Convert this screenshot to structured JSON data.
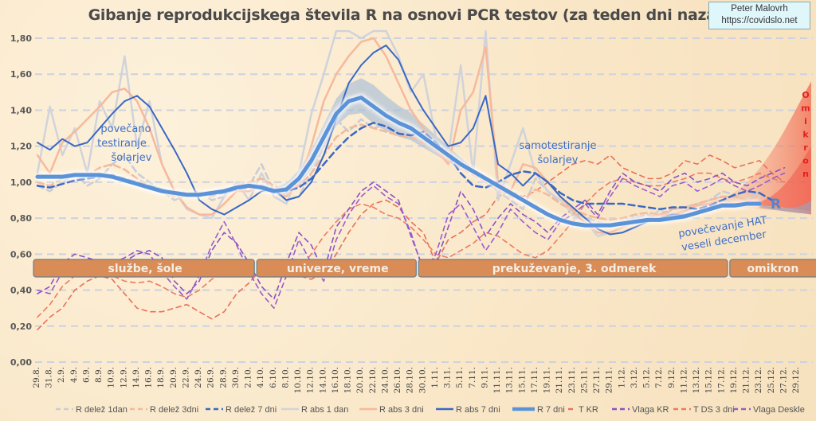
{
  "header": {
    "title": "Gibanje reprodukcijskega števila R na osnovi PCR testov (za teden dni nazaj)",
    "author_name": "Peter Malovrh",
    "author_url": "https://covidslo.net"
  },
  "chart_data": {
    "type": "line",
    "title": "Gibanje reprodukcijskega števila R na osnovi PCR testov (za teden dni nazaj)",
    "xlabel": "",
    "ylabel": "",
    "ylim": [
      0,
      1.8
    ],
    "yticks": [
      "0,00",
      "0,20",
      "0,40",
      "0,60",
      "0,80",
      "1,00",
      "1,20",
      "1,40",
      "1,60",
      "1,80"
    ],
    "grid": true,
    "legend_position": "bottom",
    "x_categories": [
      "29.8.",
      "31.8.",
      "2.9.",
      "4.9.",
      "6.9.",
      "8.9.",
      "10.9.",
      "12.9.",
      "14.9.",
      "16.9.",
      "18.9.",
      "20.9.",
      "22.9.",
      "24.9.",
      "26.9.",
      "28.9.",
      "30.9.",
      "2.10.",
      "4.10.",
      "6.10.",
      "8.10.",
      "10.10.",
      "12.10.",
      "14.10.",
      "16.10.",
      "18.10.",
      "20.10.",
      "22.10.",
      "24.10.",
      "26.10.",
      "28.10.",
      "30.10.",
      "1.11.",
      "3.11.",
      "5.11.",
      "7.11.",
      "9.11.",
      "11.11.",
      "13.11.",
      "15.11.",
      "17.11.",
      "19.11.",
      "21.11.",
      "23.11.",
      "25.11.",
      "27.11.",
      "29.11.",
      "1.12.",
      "3.12.",
      "5.12.",
      "7.12.",
      "9.12.",
      "11.12.",
      "13.12.",
      "15.12.",
      "17.12.",
      "19.12.",
      "21.12.",
      "23.12.",
      "25.12.",
      "27.12.",
      "29.12."
    ],
    "series": [
      {
        "name": "R delež 1dan",
        "style": "dashed",
        "color": "#c8ccd6",
        "width": 2.5,
        "values": [
          0.98,
          0.95,
          1.0,
          1.05,
          0.98,
          1.02,
          1.1,
          1.15,
          1.05,
          1.0,
          0.95,
          0.9,
          0.93,
          0.95,
          0.9,
          0.92,
          1.0,
          0.98,
          1.1,
          0.95,
          0.9,
          0.92,
          1.05,
          1.2,
          1.35,
          1.28,
          1.35,
          1.3,
          1.32,
          1.35,
          1.28,
          1.25,
          1.2,
          1.15,
          1.1,
          1.05,
          1.0,
          0.95,
          0.9,
          0.85,
          1.02,
          0.95,
          0.88,
          0.84,
          0.8,
          0.78,
          0.76,
          0.78,
          0.8,
          0.82,
          0.8,
          0.85,
          0.86,
          0.88,
          0.9,
          0.95,
          0.93,
          0.9,
          0.95,
          null,
          null,
          null
        ]
      },
      {
        "name": "R delež 3dni",
        "style": "dashed",
        "color": "#f4b89a",
        "width": 2.5,
        "values": [
          1.0,
          0.98,
          1.02,
          1.05,
          1.04,
          1.08,
          1.1,
          1.07,
          1.02,
          0.98,
          0.95,
          0.92,
          0.93,
          0.94,
          0.92,
          0.95,
          0.98,
          1.0,
          1.02,
          0.98,
          0.95,
          0.98,
          1.05,
          1.15,
          1.25,
          1.3,
          1.32,
          1.3,
          1.28,
          1.26,
          1.25,
          1.22,
          1.18,
          1.12,
          1.08,
          1.04,
          1.0,
          0.96,
          0.92,
          0.9,
          0.96,
          0.93,
          0.88,
          0.85,
          0.82,
          0.8,
          0.79,
          0.8,
          0.82,
          0.83,
          0.82,
          0.85,
          0.86,
          0.88,
          0.9,
          0.92,
          0.92,
          0.9,
          0.92,
          null,
          null,
          null
        ]
      },
      {
        "name": "R delež 7 dni",
        "style": "dashed",
        "color": "#3a68c4",
        "width": 2.5,
        "values": [
          0.98,
          0.97,
          0.99,
          1.01,
          1.02,
          1.03,
          1.04,
          1.02,
          1.0,
          0.98,
          0.96,
          0.94,
          0.93,
          0.93,
          0.93,
          0.94,
          0.96,
          0.97,
          0.98,
          0.96,
          0.95,
          0.97,
          1.02,
          1.1,
          1.18,
          1.25,
          1.3,
          1.33,
          1.31,
          1.27,
          1.26,
          1.28,
          1.22,
          1.15,
          1.05,
          0.98,
          0.97,
          1.0,
          1.04,
          1.06,
          1.05,
          1.0,
          0.94,
          0.9,
          0.88,
          0.88,
          0.88,
          0.88,
          0.87,
          0.86,
          0.85,
          0.86,
          0.86,
          0.85,
          0.87,
          0.9,
          0.93,
          0.95,
          0.94,
          0.9,
          null,
          null
        ]
      },
      {
        "name": "R abs 1 dan",
        "style": "solid",
        "color": "#d0d3da",
        "width": 2.5,
        "values": [
          1.05,
          1.42,
          1.15,
          1.3,
          1.05,
          1.45,
          1.3,
          1.7,
          1.2,
          1.45,
          1.1,
          0.95,
          0.85,
          0.82,
          0.8,
          0.92,
          1.0,
          0.9,
          1.05,
          0.92,
          0.88,
          1.05,
          1.38,
          1.6,
          1.9,
          1.85,
          1.8,
          1.9,
          1.95,
          1.7,
          1.5,
          1.6,
          1.25,
          1.15,
          1.65,
          1.05,
          1.85,
          0.9,
          1.1,
          1.3,
          1.05,
          0.95,
          0.9,
          0.82,
          0.78,
          0.7,
          0.72,
          0.75,
          0.82,
          0.78,
          0.85,
          0.8,
          0.83,
          0.88,
          0.9,
          0.92,
          0.88,
          0.9,
          0.92,
          null,
          null,
          null
        ]
      },
      {
        "name": "R abs 3 dni",
        "style": "solid",
        "color": "#f6b99c",
        "width": 2.5,
        "values": [
          1.15,
          1.05,
          1.22,
          1.28,
          1.35,
          1.42,
          1.5,
          1.52,
          1.45,
          1.3,
          1.1,
          0.95,
          0.86,
          0.82,
          0.82,
          0.88,
          0.95,
          0.95,
          0.98,
          0.95,
          0.92,
          1.0,
          1.2,
          1.45,
          1.6,
          1.7,
          1.78,
          1.8,
          1.7,
          1.55,
          1.4,
          1.3,
          1.18,
          1.1,
          1.4,
          1.5,
          1.75,
          1.0,
          0.95,
          1.1,
          1.08,
          1.0,
          0.92,
          0.84,
          0.77,
          0.72,
          0.72,
          0.75,
          0.78,
          0.8,
          0.82,
          0.82,
          0.84,
          0.87,
          0.88,
          0.9,
          0.88,
          0.9,
          0.88,
          null,
          null,
          null
        ]
      },
      {
        "name": "R abs 7 dni",
        "style": "solid",
        "color": "#3a68c4",
        "width": 2,
        "values": [
          1.22,
          1.18,
          1.24,
          1.2,
          1.22,
          1.3,
          1.38,
          1.45,
          1.48,
          1.42,
          1.3,
          1.18,
          1.05,
          0.9,
          0.85,
          0.82,
          0.86,
          0.9,
          0.95,
          0.96,
          0.9,
          0.92,
          1.0,
          1.15,
          1.35,
          1.55,
          1.65,
          1.72,
          1.76,
          1.68,
          1.52,
          1.4,
          1.3,
          1.2,
          1.22,
          1.3,
          1.48,
          1.1,
          1.05,
          0.98,
          1.05,
          1.0,
          0.92,
          0.86,
          0.8,
          0.74,
          0.71,
          0.72,
          0.75,
          0.78,
          0.8,
          0.82,
          0.82,
          0.83,
          0.86,
          0.88,
          0.88,
          0.88,
          0.88,
          null,
          null,
          null
        ]
      },
      {
        "name": "R 7 dni",
        "style": "solid",
        "color": "#5b93d8",
        "width": 5,
        "values": [
          1.03,
          1.03,
          1.03,
          1.04,
          1.04,
          1.04,
          1.03,
          1.01,
          0.99,
          0.97,
          0.95,
          0.94,
          0.93,
          0.93,
          0.94,
          0.95,
          0.97,
          0.98,
          0.97,
          0.95,
          0.96,
          1.02,
          1.12,
          1.25,
          1.38,
          1.45,
          1.47,
          1.42,
          1.37,
          1.33,
          1.3,
          1.25,
          1.2,
          1.15,
          1.1,
          1.06,
          1.02,
          0.98,
          0.94,
          0.9,
          0.86,
          0.82,
          0.79,
          0.77,
          0.76,
          0.76,
          0.76,
          0.77,
          0.78,
          0.79,
          0.79,
          0.8,
          0.81,
          0.83,
          0.85,
          0.87,
          0.87,
          0.88,
          0.88,
          null,
          null,
          null
        ]
      },
      {
        "name": "T KR",
        "style": "dashed",
        "color": "#e8715a",
        "width": 1.6,
        "values": [
          0.18,
          0.25,
          0.3,
          0.4,
          0.45,
          0.48,
          0.46,
          0.38,
          0.3,
          0.28,
          0.28,
          0.3,
          0.32,
          0.28,
          0.24,
          0.28,
          0.38,
          0.44,
          0.52,
          0.56,
          0.5,
          0.48,
          0.46,
          0.5,
          0.6,
          0.72,
          0.82,
          0.88,
          0.9,
          0.86,
          0.78,
          0.72,
          0.55,
          0.68,
          0.72,
          0.78,
          0.82,
          0.92,
          0.95,
          0.92,
          0.95,
          1.0,
          1.05,
          1.1,
          1.12,
          1.1,
          1.15,
          1.08,
          1.05,
          1.02,
          1.02,
          1.05,
          1.12,
          1.1,
          1.15,
          1.12,
          1.08,
          1.1,
          1.12,
          1.05,
          1.0,
          null
        ]
      },
      {
        "name": "Vlaga KR",
        "style": "dashed",
        "color": "#8a52c4",
        "width": 1.6,
        "values": [
          0.38,
          0.42,
          0.55,
          0.6,
          0.58,
          0.56,
          0.55,
          0.56,
          0.6,
          0.62,
          0.58,
          0.45,
          0.38,
          0.45,
          0.62,
          0.72,
          0.66,
          0.55,
          0.42,
          0.35,
          0.55,
          0.72,
          0.65,
          0.5,
          0.75,
          0.85,
          0.95,
          1.0,
          0.95,
          0.9,
          0.7,
          0.52,
          0.55,
          0.75,
          0.95,
          0.85,
          0.7,
          0.8,
          0.88,
          0.82,
          0.78,
          0.72,
          0.8,
          0.85,
          0.9,
          0.82,
          0.95,
          1.05,
          1.0,
          0.98,
          0.95,
          1.02,
          1.05,
          1.0,
          1.02,
          1.05,
          1.0,
          0.98,
          1.02,
          1.05,
          1.08,
          null
        ]
      },
      {
        "name": "T DS 3 dni",
        "style": "dashed",
        "color": "#ee7b5e",
        "width": 1.6,
        "values": [
          0.25,
          0.32,
          0.42,
          0.48,
          0.5,
          0.5,
          0.48,
          0.45,
          0.44,
          0.45,
          0.42,
          0.38,
          0.36,
          0.4,
          0.46,
          0.5,
          0.52,
          0.55,
          0.54,
          0.52,
          0.48,
          0.52,
          0.6,
          0.7,
          0.78,
          0.85,
          0.88,
          0.86,
          0.82,
          0.8,
          0.75,
          0.68,
          0.6,
          0.58,
          0.62,
          0.66,
          0.72,
          0.7,
          0.65,
          0.6,
          0.58,
          0.62,
          0.7,
          0.78,
          0.88,
          0.95,
          1.0,
          1.02,
          1.0,
          0.98,
          0.98,
          1.0,
          1.02,
          1.05,
          1.05,
          1.02,
          1.0,
          1.02,
          1.05,
          1.02,
          1.0,
          null
        ]
      },
      {
        "name": "Vlaga Deskle",
        "style": "dashed",
        "color": "#9a5ccc",
        "width": 1.6,
        "values": [
          0.4,
          0.38,
          0.5,
          0.55,
          0.52,
          0.5,
          0.55,
          0.58,
          0.62,
          0.6,
          0.5,
          0.42,
          0.35,
          0.48,
          0.65,
          0.78,
          0.65,
          0.5,
          0.38,
          0.3,
          0.48,
          0.68,
          0.55,
          0.45,
          0.68,
          0.82,
          0.92,
          0.98,
          0.92,
          0.88,
          0.72,
          0.5,
          0.6,
          0.82,
          0.88,
          0.75,
          0.62,
          0.72,
          0.85,
          0.78,
          0.72,
          0.68,
          0.78,
          0.82,
          0.88,
          0.8,
          0.92,
          1.02,
          0.98,
          0.95,
          0.92,
          0.98,
          1.0,
          0.95,
          0.98,
          1.02,
          0.98,
          0.95,
          0.98,
          1.02,
          1.05,
          null
        ]
      }
    ],
    "periods": [
      {
        "label": "službe, šole",
        "from": "29.8.",
        "to": "4.10."
      },
      {
        "label": "univerze, vreme",
        "from": "4.10.",
        "to": "30.10."
      },
      {
        "label": "prekuževanje, 3. odmerek",
        "from": "30.10.",
        "to": "19.12."
      },
      {
        "label": "omikron",
        "from": "19.12.",
        "to": "29.12."
      }
    ],
    "annotations": [
      {
        "text": [
          "povečano",
          "testiranje",
          "šolarjev"
        ],
        "near": "14.9."
      },
      {
        "text": [
          "samotestiranje",
          "šolarjev"
        ],
        "near": "23.11."
      },
      {
        "text": [
          "povečevanje HAT",
          "veseli december"
        ],
        "near": "15.12."
      },
      {
        "text": [
          "R"
        ],
        "near": "25.12."
      },
      {
        "text": [
          "O",
          "m",
          "i",
          "k",
          "r",
          "o",
          "n"
        ],
        "near": "29.12."
      }
    ]
  },
  "legend": [
    {
      "label": "R delež 1dan",
      "style": "dashed",
      "color": "#c8ccd6"
    },
    {
      "label": "R delež 3dni",
      "style": "dashed",
      "color": "#f4b89a"
    },
    {
      "label": "R delež 7 dni",
      "style": "dashed",
      "color": "#3a68c4"
    },
    {
      "label": "R abs 1 dan",
      "style": "solid",
      "color": "#d0d3da"
    },
    {
      "label": "R abs 3 dni",
      "style": "solid",
      "color": "#f6b99c"
    },
    {
      "label": "R abs 7 dni",
      "style": "solid",
      "color": "#3a68c4"
    },
    {
      "label": "R 7 dni",
      "style": "solid-thick",
      "color": "#5b93d8"
    },
    {
      "label": "T KR",
      "style": "dashed",
      "color": "#e8715a"
    },
    {
      "label": "Vlaga KR",
      "style": "dashed",
      "color": "#8a52c4"
    },
    {
      "label": "T DS 3 dni",
      "style": "dashed",
      "color": "#ee7b5e"
    },
    {
      "label": "Vlaga Deskle",
      "style": "dashed",
      "color": "#9a5ccc"
    }
  ]
}
